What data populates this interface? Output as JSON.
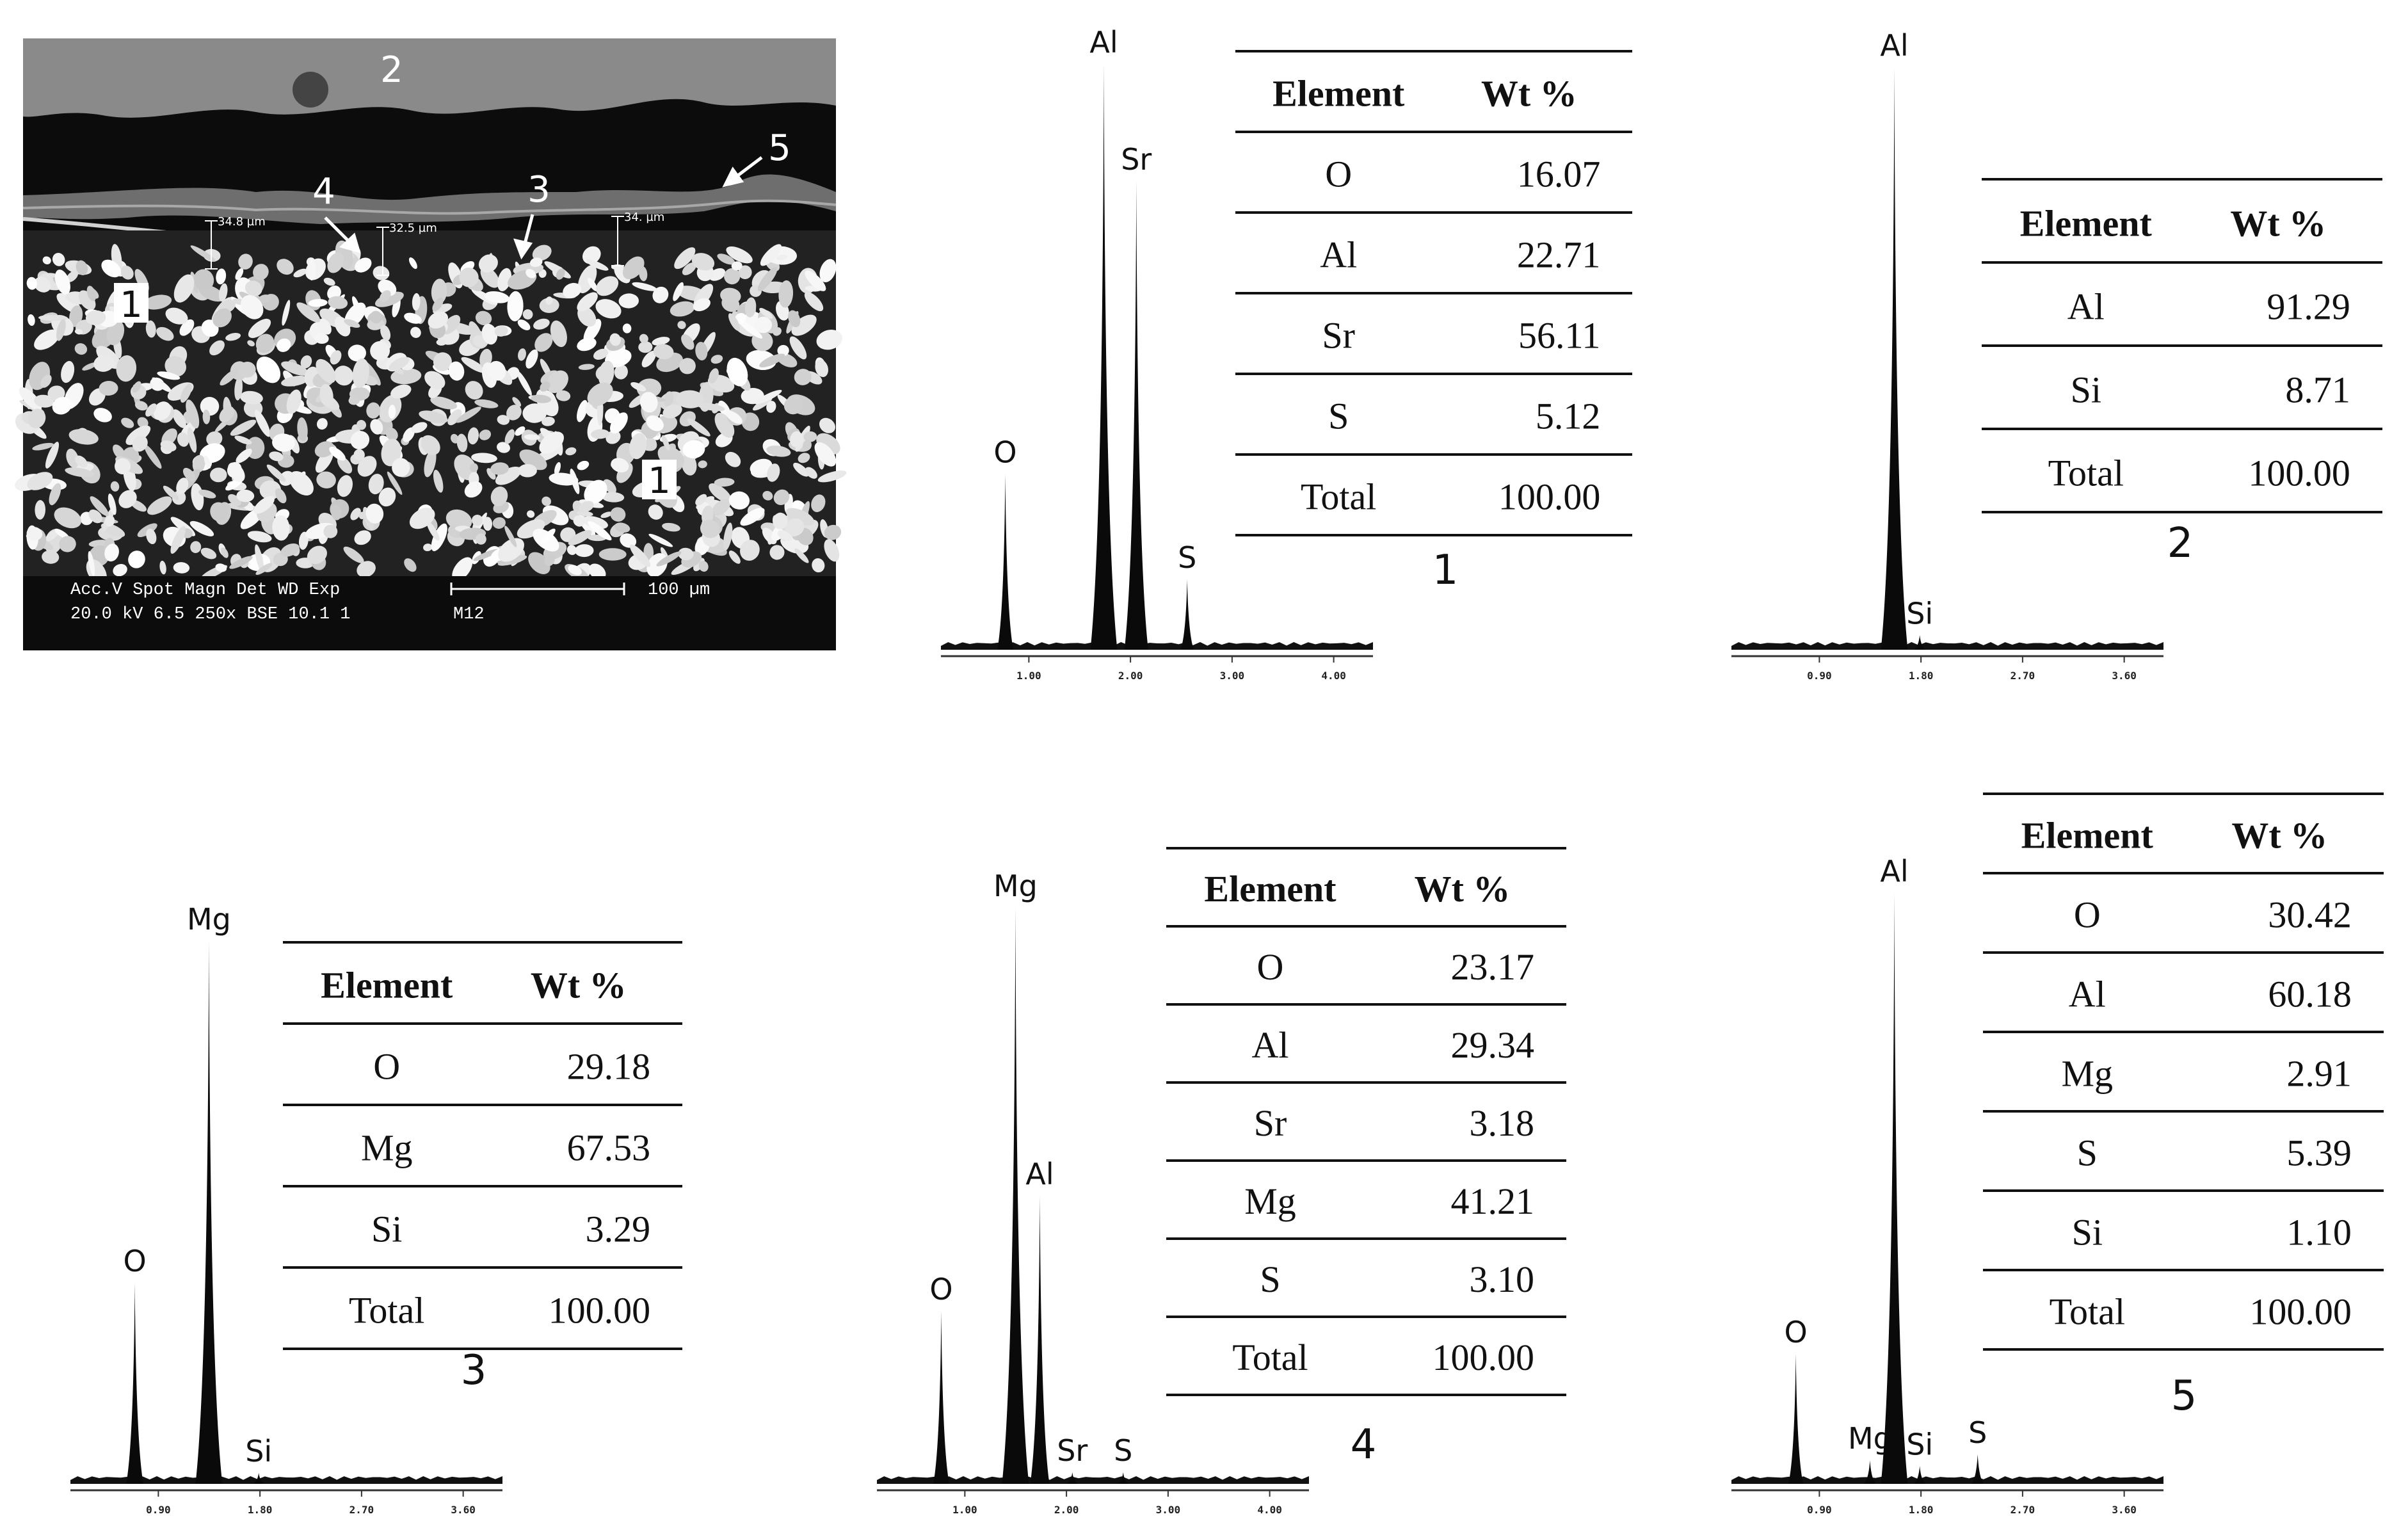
{
  "sem": {
    "markers": [
      "1",
      "2",
      "3",
      "4",
      "5",
      "1"
    ],
    "measurements": [
      "34.8 µm",
      "32.5 µm",
      "34. µm"
    ],
    "info_line1": "Acc.V   Spot Magn    Det  WD  Exp",
    "info_line2": "20.0 kV 6.5   250x     BSE  10.1  1",
    "sample_id": "M12",
    "scale_bar": "100 µm"
  },
  "panels": [
    {
      "number": "1",
      "table": {
        "headers": [
          "Element",
          "Wt %"
        ],
        "rows": [
          [
            "O",
            "16.07"
          ],
          [
            "Al",
            "22.71"
          ],
          [
            "Sr",
            "56.11"
          ],
          [
            "S",
            "5.12"
          ],
          [
            "Total",
            "100.00"
          ]
        ]
      },
      "spectrum": {
        "peaks": [
          {
            "element": "O",
            "energy": 0.52,
            "height": 0.3
          },
          {
            "element": "Al",
            "energy": 1.49,
            "height": 1.0
          },
          {
            "element": "Sr",
            "energy": 1.81,
            "height": 0.8
          },
          {
            "element": "S",
            "energy": 2.31,
            "height": 0.12
          }
        ],
        "axis_max": 4.0,
        "ticks": [
          "1.00",
          "2.00",
          "3.00",
          "4.00"
        ]
      }
    },
    {
      "number": "2",
      "table": {
        "headers": [
          "Element",
          "Wt %"
        ],
        "rows": [
          [
            "Al",
            "91.29"
          ],
          [
            "Si",
            "8.71"
          ],
          [
            "Total",
            "100.00"
          ]
        ]
      },
      "spectrum": {
        "peaks": [
          {
            "element": "Al",
            "energy": 1.49,
            "height": 1.0
          },
          {
            "element": "Si",
            "energy": 1.74,
            "height": 0.025
          }
        ],
        "axis_max": 4.0,
        "ticks": [
          "0.90",
          "1.80",
          "2.70",
          "3.60"
        ]
      }
    },
    {
      "number": "3",
      "table": {
        "headers": [
          "Element",
          "Wt %"
        ],
        "rows": [
          [
            "O",
            "29.18"
          ],
          [
            "Mg",
            "67.53"
          ],
          [
            "Si",
            "3.29"
          ],
          [
            "Total",
            "100.00"
          ]
        ]
      },
      "spectrum": {
        "peaks": [
          {
            "element": "O",
            "energy": 0.52,
            "height": 0.37
          },
          {
            "element": "Mg",
            "energy": 1.25,
            "height": 1.0
          },
          {
            "element": "Si",
            "energy": 1.74,
            "height": 0.02
          }
        ],
        "axis_max": 4.0,
        "ticks": [
          "0.90",
          "1.80",
          "2.70",
          "3.60"
        ]
      }
    },
    {
      "number": "4",
      "table": {
        "headers": [
          "Element",
          "Wt %"
        ],
        "rows": [
          [
            "O",
            "23.17"
          ],
          [
            "Al",
            "29.34"
          ],
          [
            "Sr",
            "3.18"
          ],
          [
            "Mg",
            "41.21"
          ],
          [
            "S",
            "3.10"
          ],
          [
            "Total",
            "100.00"
          ]
        ]
      },
      "spectrum": {
        "peaks": [
          {
            "element": "O",
            "energy": 0.52,
            "height": 0.3
          },
          {
            "element": "Mg",
            "energy": 1.25,
            "height": 1.0
          },
          {
            "element": "Al",
            "energy": 1.49,
            "height": 0.5
          },
          {
            "element": "Sr",
            "energy": 1.81,
            "height": 0.02
          },
          {
            "element": "S",
            "energy": 2.31,
            "height": 0.02
          }
        ],
        "axis_max": 4.0,
        "ticks": [
          "1.00",
          "2.00",
          "3.00",
          "4.00"
        ]
      }
    },
    {
      "number": "5",
      "table": {
        "headers": [
          "Element",
          "Wt %"
        ],
        "rows": [
          [
            "O",
            "30.42"
          ],
          [
            "Al",
            "60.18"
          ],
          [
            "Mg",
            "2.91"
          ],
          [
            "S",
            "5.39"
          ],
          [
            "Si",
            "1.10"
          ],
          [
            "Total",
            "100.00"
          ]
        ]
      },
      "spectrum": {
        "peaks": [
          {
            "element": "O",
            "energy": 0.52,
            "height": 0.22
          },
          {
            "element": "Mg",
            "energy": 1.25,
            "height": 0.04
          },
          {
            "element": "Al",
            "energy": 1.49,
            "height": 1.0
          },
          {
            "element": "Si",
            "energy": 1.74,
            "height": 0.03
          },
          {
            "element": "S",
            "energy": 2.31,
            "height": 0.05
          }
        ],
        "axis_max": 4.0,
        "ticks": [
          "0.90",
          "1.80",
          "2.70",
          "3.60"
        ]
      }
    }
  ]
}
